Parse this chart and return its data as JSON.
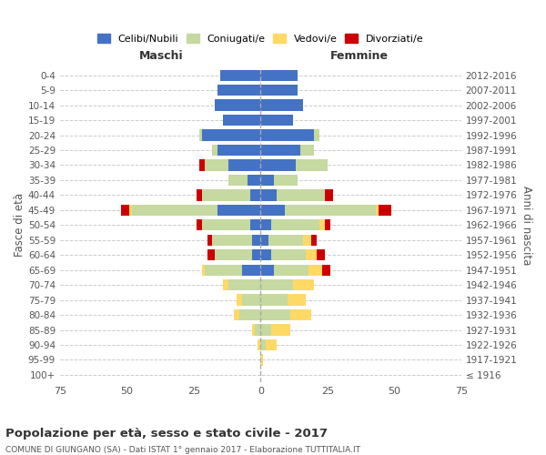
{
  "age_groups": [
    "100+",
    "95-99",
    "90-94",
    "85-89",
    "80-84",
    "75-79",
    "70-74",
    "65-69",
    "60-64",
    "55-59",
    "50-54",
    "45-49",
    "40-44",
    "35-39",
    "30-34",
    "25-29",
    "20-24",
    "15-19",
    "10-14",
    "5-9",
    "0-4"
  ],
  "birth_years": [
    "≤ 1916",
    "1917-1921",
    "1922-1926",
    "1927-1931",
    "1932-1936",
    "1937-1941",
    "1942-1946",
    "1947-1951",
    "1952-1956",
    "1957-1961",
    "1962-1966",
    "1967-1971",
    "1972-1976",
    "1977-1981",
    "1982-1986",
    "1987-1991",
    "1992-1996",
    "1997-2001",
    "2002-2006",
    "2007-2011",
    "2012-2016"
  ],
  "maschi": {
    "celibi": [
      0,
      0,
      0,
      0,
      0,
      0,
      0,
      7,
      3,
      3,
      4,
      16,
      4,
      5,
      12,
      16,
      22,
      14,
      17,
      16,
      15
    ],
    "coniugati": [
      0,
      0,
      0,
      2,
      8,
      7,
      12,
      14,
      14,
      15,
      18,
      32,
      18,
      7,
      9,
      2,
      1,
      0,
      0,
      0,
      0
    ],
    "vedovi": [
      0,
      0,
      1,
      1,
      2,
      2,
      2,
      1,
      0,
      0,
      0,
      1,
      0,
      0,
      0,
      0,
      0,
      0,
      0,
      0,
      0
    ],
    "divorziati": [
      0,
      0,
      0,
      0,
      0,
      0,
      0,
      0,
      3,
      2,
      2,
      3,
      2,
      0,
      2,
      0,
      0,
      0,
      0,
      0,
      0
    ]
  },
  "femmine": {
    "nubili": [
      0,
      0,
      0,
      0,
      0,
      0,
      0,
      5,
      4,
      3,
      4,
      9,
      6,
      5,
      13,
      15,
      20,
      12,
      16,
      14,
      14
    ],
    "coniugate": [
      0,
      0,
      2,
      4,
      11,
      10,
      12,
      13,
      13,
      13,
      18,
      34,
      18,
      9,
      12,
      5,
      2,
      0,
      0,
      0,
      0
    ],
    "vedove": [
      0,
      1,
      4,
      7,
      8,
      7,
      8,
      5,
      4,
      3,
      2,
      1,
      0,
      0,
      0,
      0,
      0,
      0,
      0,
      0,
      0
    ],
    "divorziate": [
      0,
      0,
      0,
      0,
      0,
      0,
      0,
      3,
      3,
      2,
      2,
      5,
      3,
      0,
      0,
      0,
      0,
      0,
      0,
      0,
      0
    ]
  },
  "colors": {
    "celibi_nubili": "#4472c4",
    "coniugati": "#c5d9a0",
    "vedovi": "#ffd966",
    "divorziati": "#cc0000"
  },
  "title": "Popolazione per età, sesso e stato civile - 2017",
  "subtitle": "COMUNE DI GIUNGANO (SA) - Dati ISTAT 1° gennaio 2017 - Elaborazione TUTTITALIA.IT",
  "ylabel_left": "Fasce di età",
  "ylabel_right": "Anni di nascita",
  "xlabel_left": "Maschi",
  "xlabel_right": "Femmine",
  "xlim": 75,
  "background_color": "#ffffff",
  "legend_labels": [
    "Celibi/Nubili",
    "Coniugati/e",
    "Vedovi/e",
    "Divorziati/e"
  ]
}
